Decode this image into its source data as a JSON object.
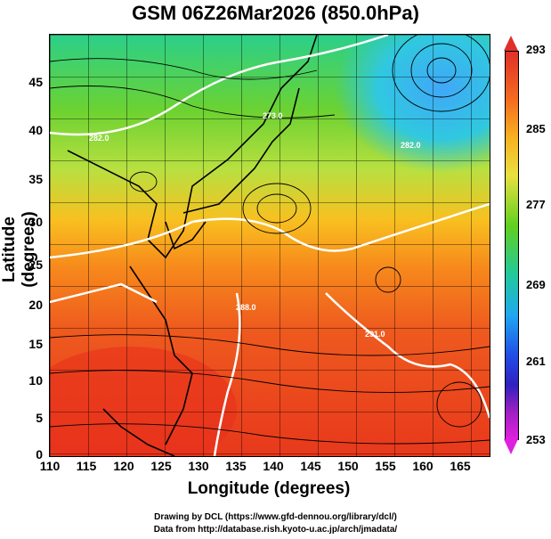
{
  "title": "GSM 06Z26Mar2026 (850.0hPa)",
  "x_axis": {
    "label": "Longitude (degrees)",
    "ticks": [
      "110",
      "115",
      "120",
      "125",
      "130",
      "135",
      "140",
      "145",
      "150",
      "155",
      "160",
      "165"
    ]
  },
  "y_axis": {
    "label": "Latitude  (degrees)",
    "ticks": [
      "45",
      "40",
      "35",
      "30",
      "25",
      "20",
      "15",
      "10",
      "5",
      "0"
    ]
  },
  "colorbar": {
    "labels": [
      "293",
      "285",
      "277",
      "269",
      "261",
      "253"
    ]
  },
  "contour_labels": [
    "273.0",
    "282.0",
    "288.0",
    "291.0",
    "282.0"
  ],
  "credits": {
    "line1": "Drawing by DCL (https://www.gfd-dennou.org/library/dcl/)",
    "line2": "Data from http://database.rish.kyoto-u.ac.jp/arch/jmadata/"
  },
  "colors": {
    "warm": "#e8421e",
    "mid": "#f7a01c",
    "cool": "#6cd231",
    "cold": "#27c4d8",
    "land": "#000000",
    "contour": "#ffffff"
  }
}
